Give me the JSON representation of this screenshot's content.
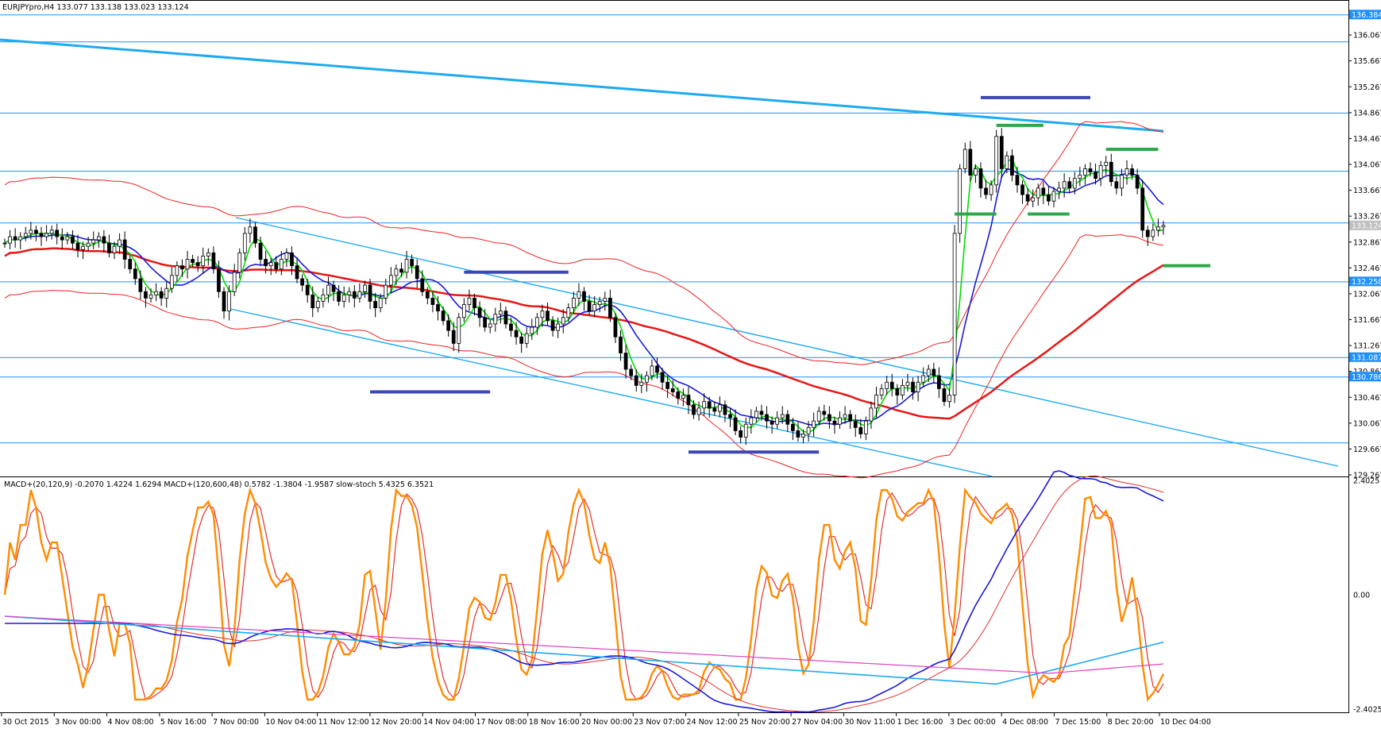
{
  "header": {
    "symbol_line": "EURJPYpro,H4  133.077 133.138 133.023 133.124",
    "indicator_line": "MACD+(20,120,9) -0.2070 1.4224 1.6294  MACD+(120,600,48) 0.5782 -1.3804 -1.9587  slow-stoch 5.4325 6.3521"
  },
  "colors": {
    "background": "#ffffff",
    "bull_candle": "#ffffff",
    "bear_candle": "#000000",
    "hline": "#1e90ff",
    "trendline": "#1eaaf0",
    "ma_fast": "#00dd00",
    "ma_mid": "#1a1ad8",
    "ma_slow": "#e81515",
    "envelope": "#ee2222",
    "level_blue": "#3c46b4",
    "level_green": "#2ea84a",
    "stoch_orange": "#ff8c00",
    "stoch_red": "#e03030",
    "macd_blue": "#1a1ad8",
    "macd_cyan": "#1eaaf0",
    "macd_magenta": "#e040c0"
  },
  "chart_data": {
    "type": "candlestick",
    "symbol": "EURJPYpro",
    "timeframe": "H4",
    "ohlc": {
      "open": 133.077,
      "high": 133.138,
      "low": 133.023,
      "close": 133.124
    },
    "price_axis": {
      "ylim": [
        129.267,
        136.584
      ],
      "ticks": [
        "136.067",
        "135.667",
        "135.267",
        "134.867",
        "134.467",
        "134.067",
        "133.667",
        "133.267",
        "132.867",
        "132.467",
        "132.067",
        "131.667",
        "131.267",
        "130.867",
        "130.467",
        "130.067",
        "129.667",
        "129.267"
      ],
      "tick_values": [
        136.067,
        135.667,
        135.267,
        134.867,
        134.467,
        134.067,
        133.667,
        133.267,
        132.867,
        132.467,
        132.067,
        131.667,
        131.267,
        130.867,
        130.467,
        130.067,
        129.667,
        129.267
      ],
      "highlighted_levels": [
        {
          "label": "136.384",
          "value": 136.384,
          "tag_color": "#1e90ff"
        },
        {
          "label": "133.124",
          "value": 133.124,
          "tag_color": "#c0c0c0"
        },
        {
          "label": "132.258",
          "value": 132.258,
          "tag_color": "#1e90ff"
        },
        {
          "label": "131.087",
          "value": 131.087,
          "tag_color": "#1e90ff"
        },
        {
          "label": "130.786",
          "value": 130.786,
          "tag_color": "#1e90ff"
        }
      ]
    },
    "horizontal_lines": [
      136.384,
      135.967,
      134.867,
      133.967,
      133.168,
      132.258,
      131.087,
      130.786,
      129.767
    ],
    "x_axis": {
      "labels": [
        "30 Oct 2015",
        "3 Nov 00:00",
        "4 Nov 08:00",
        "5 Nov 16:00",
        "7 Nov 00:00",
        "10 Nov 04:00",
        "11 Nov 12:00",
        "12 Nov 20:00",
        "14 Nov 04:00",
        "17 Nov 08:00",
        "18 Nov 16:00",
        "20 Nov 00:00",
        "23 Nov 07:00",
        "24 Nov 12:00",
        "25 Nov 20:00",
        "27 Nov 04:00",
        "30 Nov 11:00",
        "1 Dec 16:00",
        "3 Dec 00:00",
        "4 Dec 08:00",
        "7 Dec 15:00",
        "8 Dec 20:00",
        "10 Dec 04:00"
      ]
    },
    "closes": [
      132.85,
      132.95,
      132.9,
      132.95,
      133.0,
      133.05,
      133.0,
      132.95,
      133.0,
      133.05,
      132.95,
      132.9,
      132.95,
      132.85,
      132.75,
      132.8,
      132.85,
      132.9,
      132.95,
      132.85,
      132.7,
      132.8,
      132.9,
      132.6,
      132.45,
      132.3,
      132.1,
      132.0,
      132.05,
      132.1,
      132.0,
      132.15,
      132.35,
      132.5,
      132.45,
      132.6,
      132.55,
      132.5,
      132.65,
      132.7,
      132.45,
      132.1,
      131.8,
      132.1,
      132.4,
      132.7,
      133.0,
      133.1,
      132.85,
      132.6,
      132.5,
      132.55,
      132.45,
      132.6,
      132.7,
      132.5,
      132.3,
      132.2,
      132.05,
      131.85,
      131.95,
      132.05,
      132.2,
      132.1,
      131.95,
      132.05,
      132.1,
      132.0,
      132.1,
      132.2,
      131.95,
      131.85,
      132.0,
      132.2,
      132.35,
      132.45,
      132.4,
      132.6,
      132.5,
      132.3,
      132.1,
      132.0,
      131.9,
      131.8,
      131.65,
      131.5,
      131.3,
      131.7,
      131.9,
      132.0,
      131.85,
      131.7,
      131.55,
      131.6,
      131.75,
      131.8,
      131.6,
      131.5,
      131.4,
      131.3,
      131.45,
      131.55,
      131.7,
      131.8,
      131.65,
      131.5,
      131.6,
      131.7,
      131.85,
      132.0,
      132.1,
      131.95,
      131.8,
      131.9,
      131.95,
      132.0,
      131.7,
      131.4,
      131.15,
      130.9,
      130.8,
      130.65,
      130.7,
      130.8,
      130.95,
      130.85,
      130.7,
      130.6,
      130.55,
      130.45,
      130.5,
      130.35,
      130.2,
      130.3,
      130.4,
      130.3,
      130.25,
      130.35,
      130.2,
      130.15,
      129.95,
      129.85,
      130.05,
      130.15,
      130.25,
      130.2,
      130.1,
      130.05,
      130.15,
      130.2,
      130.05,
      129.95,
      129.85,
      129.9,
      130.0,
      130.1,
      130.25,
      130.2,
      130.1,
      130.05,
      130.15,
      130.2,
      130.1,
      130.0,
      129.9,
      130.1,
      130.3,
      130.5,
      130.6,
      130.7,
      130.6,
      130.5,
      130.65,
      130.7,
      130.55,
      130.7,
      130.8,
      130.9,
      130.8,
      130.6,
      130.4,
      130.5,
      133.0,
      134.0,
      134.3,
      133.9,
      134.0,
      133.7,
      133.6,
      133.75,
      134.5,
      134.0,
      134.2,
      133.9,
      133.75,
      133.6,
      133.5,
      133.55,
      133.7,
      133.6,
      133.5,
      133.65,
      133.7,
      133.8,
      133.7,
      133.85,
      133.9,
      134.0,
      133.95,
      133.85,
      134.05,
      134.1,
      133.8,
      133.7,
      133.9,
      134.0,
      133.9,
      133.7,
      133.05,
      132.95,
      133.05,
      133.1,
      133.124
    ],
    "annotations": {
      "blue_levels": [
        {
          "price": 135.1,
          "from_bar": 187,
          "to_bar": 208
        },
        {
          "price": 132.4,
          "from_bar": 88,
          "to_bar": 108
        },
        {
          "price": 130.55,
          "from_bar": 70,
          "to_bar": 93
        },
        {
          "price": 129.62,
          "from_bar": 131,
          "to_bar": 156
        }
      ],
      "green_levels": [
        {
          "price": 134.67,
          "from_bar": 190,
          "to_bar": 199
        },
        {
          "price": 134.3,
          "from_bar": 211,
          "to_bar": 221
        },
        {
          "price": 133.3,
          "from_bar": 182,
          "to_bar": 190
        },
        {
          "price": 133.3,
          "from_bar": 196,
          "to_bar": 204
        },
        {
          "price": 132.5,
          "from_bar": 222,
          "to_bar": 231
        }
      ]
    },
    "indicator_panel": {
      "name": "MACD+ / slow-stoch",
      "ylim": [
        -2.4025,
        2.4025
      ],
      "ticks": [
        "2.4025",
        "0.00",
        "-2.4025"
      ],
      "tick_values": [
        2.4025,
        0,
        -2.4025
      ],
      "macd_fast": {
        "name": "MACD+(20,120,9)",
        "values": [
          -0.207,
          1.4224,
          1.6294
        ]
      },
      "macd_slow": {
        "name": "MACD+(120,600,48)",
        "values": [
          0.5782,
          -1.3804,
          -1.9587
        ]
      },
      "slow_stoch": {
        "name": "slow-stoch",
        "values": [
          5.4325,
          6.3521
        ]
      }
    }
  }
}
